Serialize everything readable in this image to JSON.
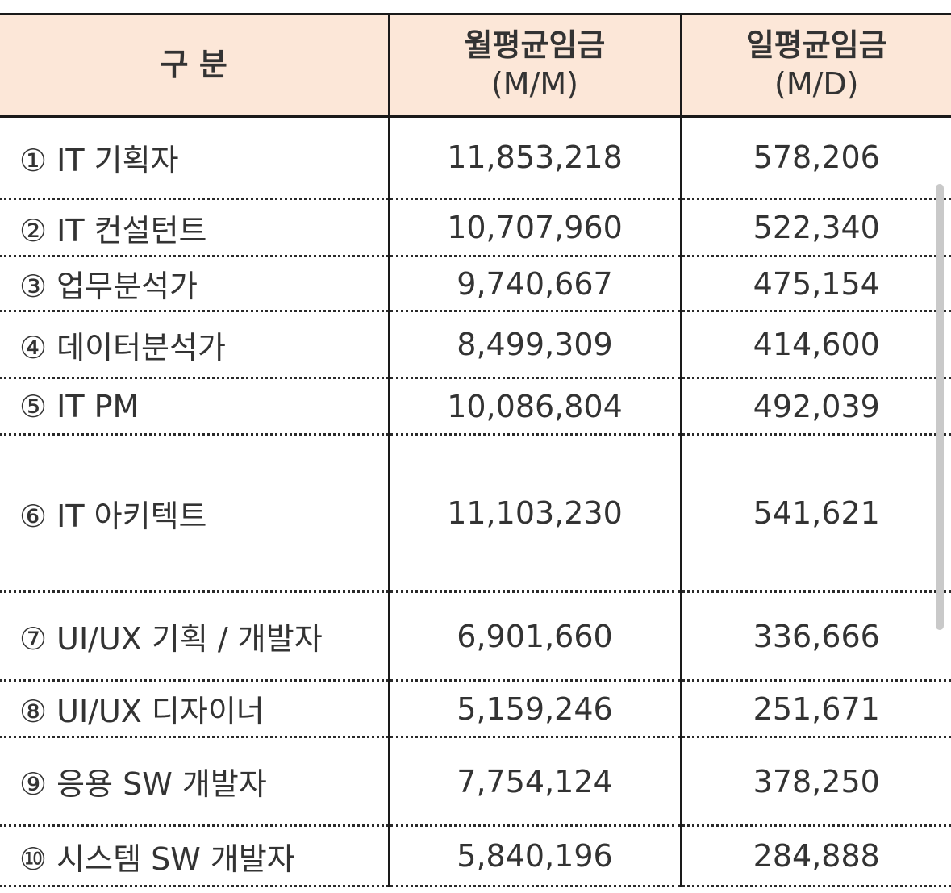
{
  "table": {
    "headers": {
      "category": "구 분",
      "monthly_line1": "월평균임금",
      "monthly_line2": "(M/M)",
      "daily_line1": "일평균임금",
      "daily_line2": "(M/D)"
    },
    "rows": [
      {
        "name": "① IT 기획자",
        "monthly": "11,853,218",
        "daily": "578,206"
      },
      {
        "name": "② IT 컨설턴트",
        "monthly": "10,707,960",
        "daily": "522,340"
      },
      {
        "name": "③ 업무분석가",
        "monthly": "9,740,667",
        "daily": "475,154"
      },
      {
        "name": "④ 데이터분석가",
        "monthly": "8,499,309",
        "daily": "414,600"
      },
      {
        "name": "⑤ IT PM",
        "monthly": "10,086,804",
        "daily": "492,039"
      },
      {
        "name": "⑥ IT 아키텍트",
        "monthly": "11,103,230",
        "daily": "541,621"
      },
      {
        "name": "⑦ UI/UX 기획 / 개발자",
        "monthly": "6,901,660",
        "daily": "336,666"
      },
      {
        "name": "⑧ UI/UX 디자이너",
        "monthly": "5,159,246",
        "daily": "251,671"
      },
      {
        "name": "⑨ 응용 SW 개발자",
        "monthly": "7,754,124",
        "daily": "378,250"
      },
      {
        "name": "⑩ 시스템 SW 개발자",
        "monthly": "5,840,196",
        "daily": "284,888"
      }
    ]
  },
  "colors": {
    "header_background": "#fce7d8",
    "text": "#333333",
    "rule": "#1a1a1a",
    "scrollbar": "#c9c9c9"
  }
}
